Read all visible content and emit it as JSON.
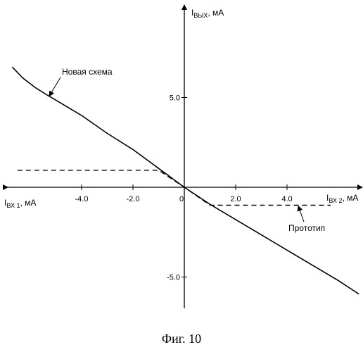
{
  "caption": "Фиг. 10",
  "chart_data": {
    "type": "line",
    "x_axis": {
      "label_main": "I",
      "label_sub_left": "ВХ 1",
      "label_unit_left": ", мА",
      "label_sub_right": "ВХ 2",
      "label_unit_right": ", мА"
    },
    "y_axis": {
      "label_main": "I",
      "label_sub": "ВЫХ",
      "label_unit": ", мА"
    },
    "origin_label": "0",
    "xlim": [
      -7.3,
      7.2
    ],
    "ylim": [
      -5.0,
      7.0
    ],
    "x_ticks": [
      {
        "value": -4.0,
        "label": "-4.0"
      },
      {
        "value": -2.0,
        "label": "-2.0"
      },
      {
        "value": 2.0,
        "label": "2.0"
      },
      {
        "value": 4.0,
        "label": "4.0"
      }
    ],
    "y_ticks": [
      {
        "value": 5.0,
        "label": "5.0"
      },
      {
        "value": -5.0,
        "label": "-5.0"
      }
    ],
    "series": [
      {
        "name": "Новая схема",
        "style": "solid",
        "points": [
          [
            -6.7,
            6.7
          ],
          [
            -6.3,
            6.1
          ],
          [
            -5.8,
            5.55
          ],
          [
            -5.3,
            5.1
          ],
          [
            -5.0,
            4.85
          ],
          [
            -4.0,
            4.0
          ],
          [
            -3.0,
            3.0
          ],
          [
            -2.0,
            2.1
          ],
          [
            -1.0,
            1.05
          ],
          [
            0.0,
            0.0
          ],
          [
            1.0,
            -0.95
          ],
          [
            2.0,
            -1.8
          ],
          [
            3.0,
            -2.65
          ],
          [
            4.0,
            -3.5
          ],
          [
            5.0,
            -4.35
          ],
          [
            6.0,
            -5.2
          ],
          [
            6.8,
            -5.95
          ]
        ]
      },
      {
        "name": "Прототип",
        "style": "dashed",
        "points": [
          [
            -6.5,
            0.95
          ],
          [
            -1.0,
            0.95
          ],
          [
            0.0,
            0.0
          ],
          [
            1.0,
            -1.0
          ],
          [
            5.7,
            -1.0
          ]
        ]
      }
    ],
    "annotations": [
      {
        "text": "Новая схема",
        "target_series": "Новая схема"
      },
      {
        "text": "Прототип",
        "target_series": "Прототип"
      }
    ]
  }
}
